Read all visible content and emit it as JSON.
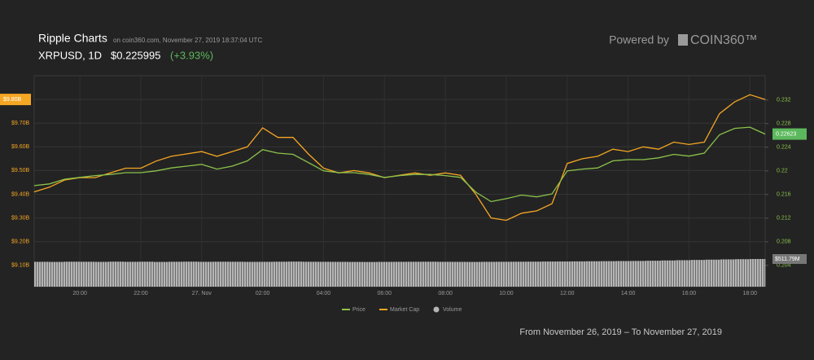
{
  "chart_data": {
    "type": "line",
    "title": "Ripple Charts",
    "subtitle": "on coin360.com, November 27, 2019 18:37:04 UTC",
    "symbol": "XRPUSD, 1D",
    "price": "$0.225995",
    "change": "(+3.93%)",
    "x": [
      "2019-11-26T18:30",
      "2019-11-26T19:00",
      "2019-11-26T19:30",
      "2019-11-26T20:00",
      "2019-11-26T20:30",
      "2019-11-26T21:00",
      "2019-11-26T21:30",
      "2019-11-26T22:00",
      "2019-11-26T22:30",
      "2019-11-26T23:00",
      "2019-11-26T23:30",
      "2019-11-27T00:00",
      "2019-11-27T00:30",
      "2019-11-27T01:00",
      "2019-11-27T01:30",
      "2019-11-27T02:00",
      "2019-11-27T02:30",
      "2019-11-27T03:00",
      "2019-11-27T03:30",
      "2019-11-27T04:00",
      "2019-11-27T04:30",
      "2019-11-27T05:00",
      "2019-11-27T05:30",
      "2019-11-27T06:00",
      "2019-11-27T06:30",
      "2019-11-27T07:00",
      "2019-11-27T07:30",
      "2019-11-27T08:00",
      "2019-11-27T08:30",
      "2019-11-27T09:00",
      "2019-11-27T09:30",
      "2019-11-27T10:00",
      "2019-11-27T10:30",
      "2019-11-27T11:00",
      "2019-11-27T11:30",
      "2019-11-27T12:00",
      "2019-11-27T12:30",
      "2019-11-27T13:00",
      "2019-11-27T13:30",
      "2019-11-27T14:00",
      "2019-11-27T14:30",
      "2019-11-27T15:00",
      "2019-11-27T15:30",
      "2019-11-27T16:00",
      "2019-11-27T16:30",
      "2019-11-27T17:00",
      "2019-11-27T17:30",
      "2019-11-27T18:00",
      "2019-11-27T18:30"
    ],
    "xlim": [
      "2019-11-26T18:30",
      "2019-11-27T18:30"
    ],
    "xticks": [
      {
        "value": "2019-11-26T20:00",
        "label": "20:00"
      },
      {
        "value": "2019-11-26T22:00",
        "label": "22:00"
      },
      {
        "value": "2019-11-27T00:00",
        "label": "27. Nov"
      },
      {
        "value": "2019-11-27T02:00",
        "label": "02:00"
      },
      {
        "value": "2019-11-27T04:00",
        "label": "04:00"
      },
      {
        "value": "2019-11-27T06:00",
        "label": "06:00"
      },
      {
        "value": "2019-11-27T08:00",
        "label": "08:00"
      },
      {
        "value": "2019-11-27T10:00",
        "label": "10:00"
      },
      {
        "value": "2019-11-27T12:00",
        "label": "12:00"
      },
      {
        "value": "2019-11-27T14:00",
        "label": "14:00"
      },
      {
        "value": "2019-11-27T16:00",
        "label": "16:00"
      },
      {
        "value": "2019-11-27T18:00",
        "label": "18:00"
      }
    ],
    "ylim": [
      9.01,
      9.9
    ],
    "yticks": [
      {
        "value": 9.1,
        "label": "$9.10B"
      },
      {
        "value": 9.2,
        "label": "$9.20B"
      },
      {
        "value": 9.3,
        "label": "$9.30B"
      },
      {
        "value": 9.4,
        "label": "$9.40B"
      },
      {
        "value": 9.5,
        "label": "$9.50B"
      },
      {
        "value": 9.6,
        "label": "$9.60B"
      },
      {
        "value": 9.7,
        "label": "$9.70B"
      },
      {
        "value": 9.8,
        "label": "$9.80B"
      }
    ],
    "y2lim": [
      0.2004,
      0.2361
    ],
    "y2ticks": [
      0.204,
      0.208,
      0.212,
      0.216,
      0.22,
      0.224,
      0.228,
      0.232
    ],
    "grid": true,
    "series": [
      {
        "name": "Price",
        "color": "#8bc34a",
        "axis": "y2",
        "last_label": "0.22623",
        "values": [
          0.2175,
          0.2178,
          0.2186,
          0.2189,
          0.2192,
          0.2194,
          0.2197,
          0.2197,
          0.22,
          0.2205,
          0.2208,
          0.2211,
          0.2203,
          0.2208,
          0.2217,
          0.2236,
          0.223,
          0.2228,
          0.2214,
          0.22,
          0.2197,
          0.2197,
          0.2194,
          0.2189,
          0.2192,
          0.2194,
          0.2194,
          0.2192,
          0.2189,
          0.2164,
          0.2148,
          0.2153,
          0.2159,
          0.2156,
          0.2161,
          0.22,
          0.2203,
          0.2205,
          0.2217,
          0.2219,
          0.2219,
          0.2222,
          0.2228,
          0.2225,
          0.223,
          0.2261,
          0.2272,
          0.2274,
          0.22623
        ]
      },
      {
        "name": "Market Cap",
        "color": "#f5a623",
        "axis": "y",
        "last_label": "$9.80B",
        "values": [
          9.41,
          9.43,
          9.46,
          9.47,
          9.47,
          9.49,
          9.51,
          9.51,
          9.54,
          9.56,
          9.57,
          9.58,
          9.56,
          9.58,
          9.6,
          9.68,
          9.64,
          9.64,
          9.57,
          9.51,
          9.49,
          9.5,
          9.49,
          9.47,
          9.48,
          9.49,
          9.48,
          9.49,
          9.48,
          9.4,
          9.3,
          9.29,
          9.32,
          9.33,
          9.36,
          9.53,
          9.55,
          9.56,
          9.59,
          9.58,
          9.6,
          9.59,
          9.62,
          9.61,
          9.62,
          9.74,
          9.79,
          9.82,
          9.8
        ]
      },
      {
        "name": "Volume",
        "color": "#b5b5b5",
        "axis": "volume",
        "last_label": "$511.79M",
        "values": [
          460,
          458,
          462,
          461,
          459,
          463,
          460,
          462,
          458,
          461,
          463,
          460,
          462,
          461,
          459,
          460,
          462,
          464,
          461,
          460,
          459,
          458,
          457,
          459,
          460,
          461,
          462,
          460,
          459,
          458,
          460,
          461,
          462,
          463,
          465,
          466,
          468,
          470,
          472,
          474,
          476,
          480,
          485,
          490,
          495,
          500,
          505,
          509,
          511.79
        ]
      }
    ]
  },
  "branding": {
    "powered_by": "Powered by",
    "logo": "COIN360™"
  },
  "footer": "From November 26, 2019 – To November 27, 2019"
}
